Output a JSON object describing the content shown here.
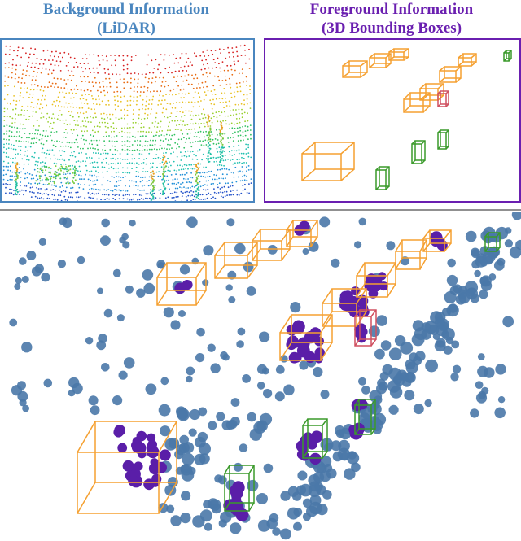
{
  "titles": {
    "background_line1": "Background Information",
    "background_line2": "(LiDAR)",
    "foreground_line1": "Foreground Information",
    "foreground_line2": "(3D Bounding Boxes)"
  },
  "colors": {
    "background_title": "#4a86bf",
    "foreground_title": "#6a1fb0",
    "car_box": "#f5a030",
    "pedestrian_box": "#3a9a2a",
    "cyclist_box": "#d05060",
    "background_points": "#4a78a8",
    "foreground_points": "#5a1ea8"
  }
}
